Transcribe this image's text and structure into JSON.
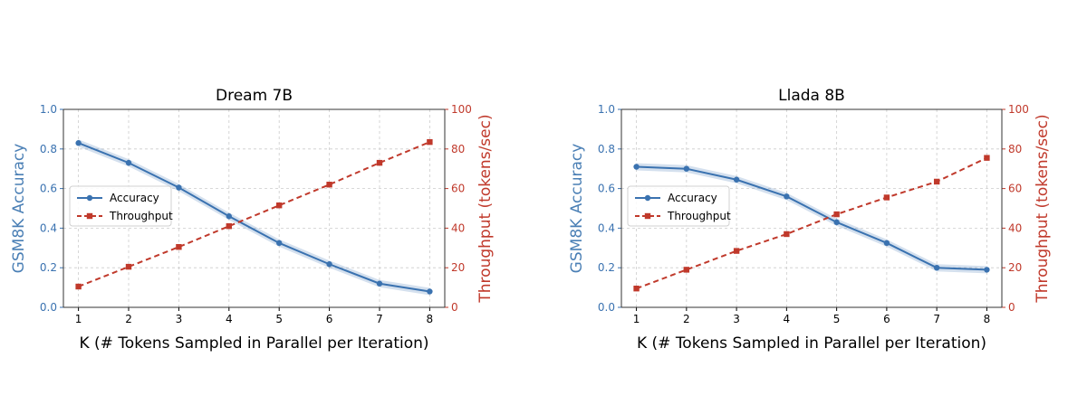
{
  "chart_data": [
    {
      "type": "line",
      "title": "Dream 7B",
      "xlabel": "K (# Tokens Sampled in Parallel per Iteration)",
      "ylabel_left": "GSM8K Accuracy",
      "ylabel_right": "Throughput (tokens/sec)",
      "x": [
        1,
        2,
        3,
        4,
        5,
        6,
        7,
        8
      ],
      "xlim": [
        0.7,
        8.3
      ],
      "ylim_left": [
        0,
        1.0
      ],
      "ylim_right": [
        0,
        100
      ],
      "yticks_left": [
        "0.0",
        "0.2",
        "0.4",
        "0.6",
        "0.8",
        "1.0"
      ],
      "yticks_right": [
        "0",
        "20",
        "40",
        "60",
        "80",
        "100"
      ],
      "grid": true,
      "legend_position": "center-left",
      "series": [
        {
          "name": "Accuracy",
          "axis": "left",
          "color": "#3a72b0",
          "marker": "circle",
          "style": "solid",
          "values": [
            0.83,
            0.73,
            0.605,
            0.46,
            0.325,
            0.218,
            0.12,
            0.08
          ]
        },
        {
          "name": "Throughput",
          "axis": "right",
          "color": "#c0392b",
          "marker": "square",
          "style": "dashed",
          "values": [
            10.5,
            20.5,
            30.5,
            41,
            51.5,
            62,
            73,
            83.5
          ]
        }
      ]
    },
    {
      "type": "line",
      "title": "Llada 8B",
      "xlabel": "K (# Tokens Sampled in Parallel per Iteration)",
      "ylabel_left": "GSM8K Accuracy",
      "ylabel_right": "Throughput (tokens/sec)",
      "x": [
        1,
        2,
        3,
        4,
        5,
        6,
        7,
        8
      ],
      "xlim": [
        0.7,
        8.3
      ],
      "ylim_left": [
        0,
        1.0
      ],
      "ylim_right": [
        0,
        100
      ],
      "yticks_left": [
        "0.0",
        "0.2",
        "0.4",
        "0.6",
        "0.8",
        "1.0"
      ],
      "yticks_right": [
        "0",
        "20",
        "40",
        "60",
        "80",
        "100"
      ],
      "grid": true,
      "legend_position": "center-left",
      "series": [
        {
          "name": "Accuracy",
          "axis": "left",
          "color": "#3a72b0",
          "marker": "circle",
          "style": "solid",
          "values": [
            0.71,
            0.7,
            0.645,
            0.56,
            0.43,
            0.325,
            0.2,
            0.19
          ]
        },
        {
          "name": "Throughput",
          "axis": "right",
          "color": "#c0392b",
          "marker": "square",
          "style": "dashed",
          "values": [
            9.5,
            19,
            28.5,
            37,
            47,
            55.5,
            63.5,
            75.5
          ]
        }
      ]
    }
  ]
}
